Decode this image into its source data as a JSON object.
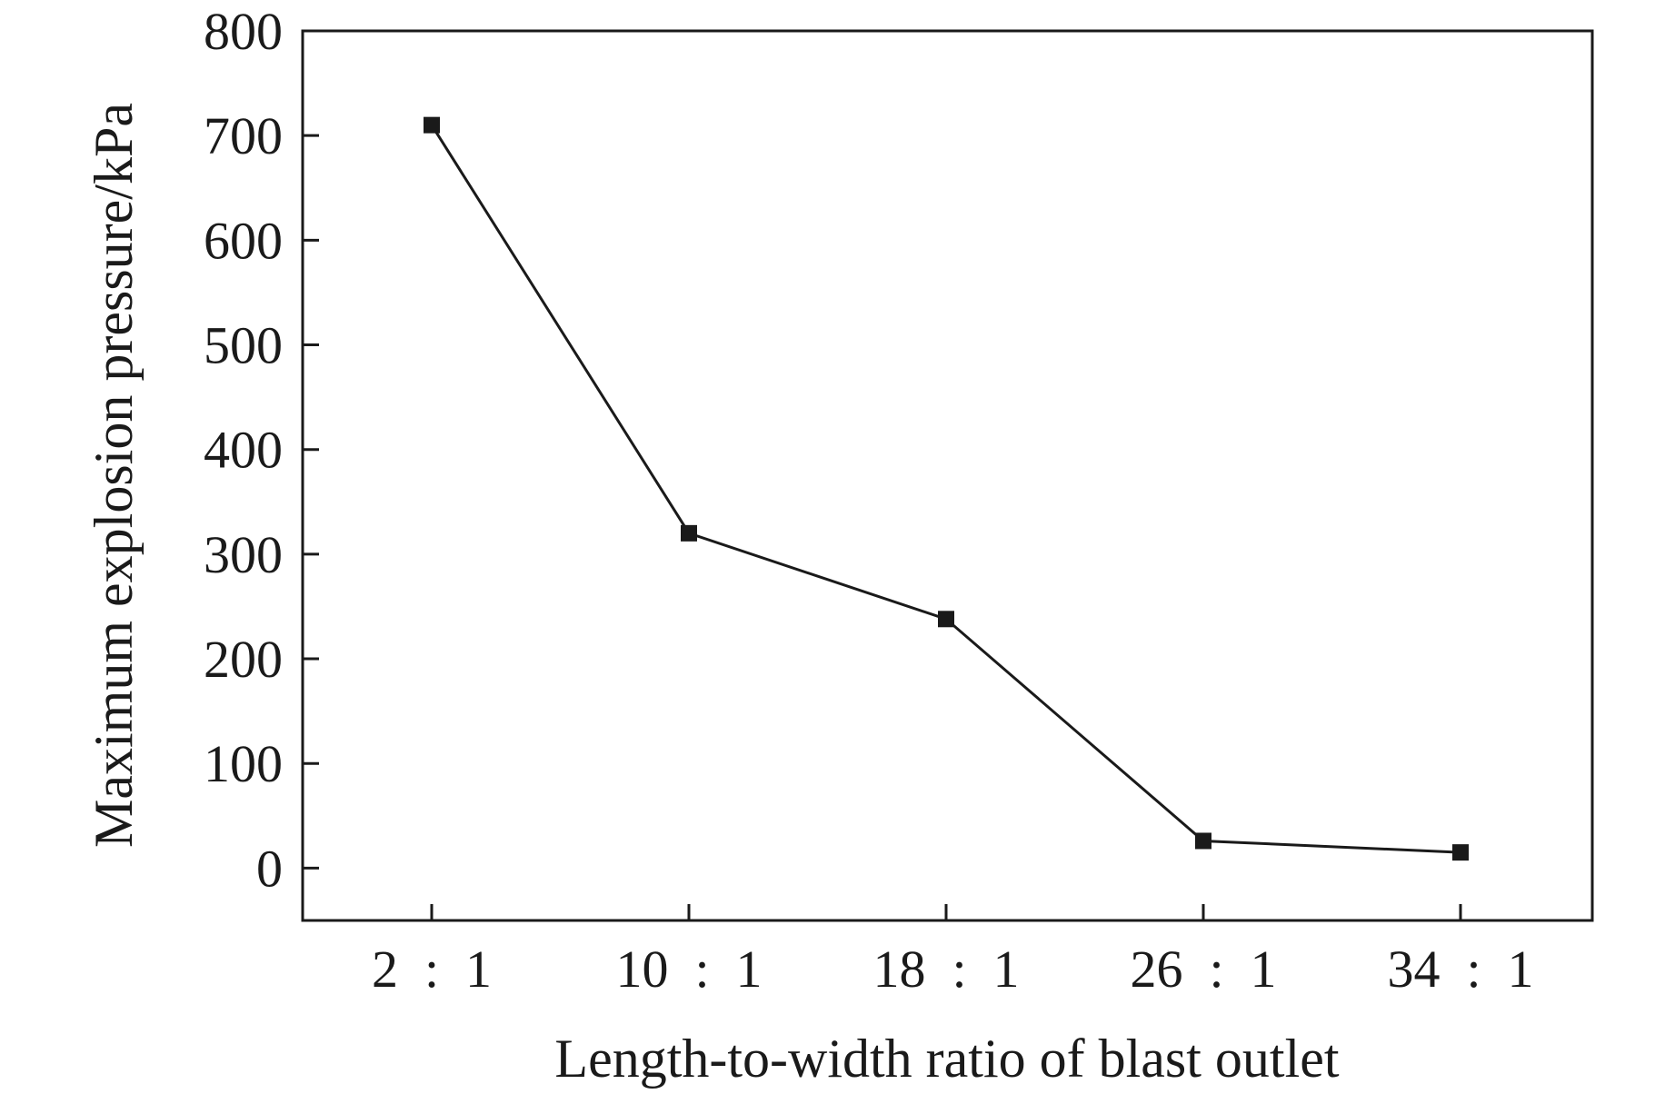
{
  "chart_data": {
    "type": "line",
    "title": "",
    "xlabel": "Length-to-width ratio of blast outlet",
    "ylabel": "Maximum explosion pressure/kPa",
    "categories": [
      "2 : 1",
      "10 : 1",
      "18 : 1",
      "26 : 1",
      "34 : 1"
    ],
    "series": [
      {
        "values": [
          710,
          320,
          238,
          26,
          15
        ]
      }
    ],
    "ylim": [
      -50,
      800
    ],
    "yticks": [
      0,
      100,
      200,
      300,
      400,
      500,
      600,
      700,
      800
    ],
    "grid": false,
    "legend": "none",
    "marker": "square",
    "colors": {
      "line": "#1a1a1a",
      "marker": "#1a1a1a",
      "axis": "#1a1a1a"
    }
  }
}
